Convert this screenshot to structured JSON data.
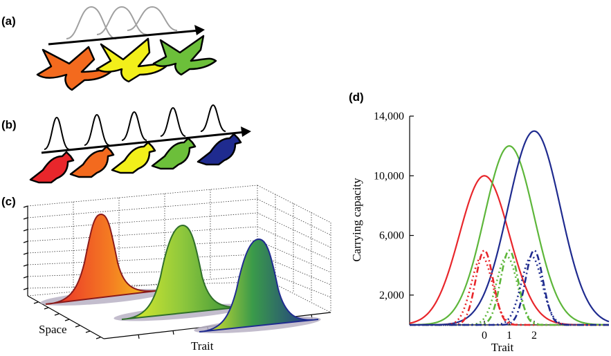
{
  "panels": {
    "a": {
      "label": "(a)"
    },
    "b": {
      "label": "(b)"
    },
    "c": {
      "label": "(c)",
      "space_label": "Space",
      "trait_label": "Trait"
    },
    "d": {
      "label": "(d)"
    }
  },
  "colors": {
    "red": "#e8262b",
    "green": "#5db63a",
    "blue": "#1f2b8f",
    "orange": "#f36a1e",
    "yellow": "#f2ef1a",
    "gray": "#9a9a9a"
  },
  "chart_data": {
    "type": "line",
    "xlabel": "Trait",
    "ylabel": "Carrying capacity",
    "x_ticks": [
      "0",
      "1",
      "2"
    ],
    "y_ticks": [
      "2,000",
      "6,000",
      "10,000",
      "14,000"
    ],
    "ylim": [
      0,
      14000
    ],
    "xlim": [
      -3,
      5
    ],
    "series": [
      {
        "style": "solid",
        "color": "#e8262b",
        "peak_x": 0,
        "peak_y": 10000,
        "sigma": 1.0
      },
      {
        "style": "solid",
        "color": "#5db63a",
        "peak_x": 1,
        "peak_y": 12000,
        "sigma": 1.0
      },
      {
        "style": "solid",
        "color": "#1f2b8f",
        "peak_x": 2,
        "peak_y": 13000,
        "sigma": 1.05
      },
      {
        "style": "dashdot",
        "color": "#e8262b",
        "peak_x": 0,
        "peak_y": 5000,
        "sigma": 0.35
      },
      {
        "style": "dotted",
        "color": "#e8262b",
        "peak_x": -0.1,
        "peak_y": 4600,
        "sigma": 0.42
      },
      {
        "style": "dashdot",
        "color": "#5db63a",
        "peak_x": 1,
        "peak_y": 5000,
        "sigma": 0.35
      },
      {
        "style": "dotted",
        "color": "#5db63a",
        "peak_x": 0.9,
        "peak_y": 4600,
        "sigma": 0.42
      },
      {
        "style": "dashdot",
        "color": "#1f2b8f",
        "peak_x": 2,
        "peak_y": 5000,
        "sigma": 0.35
      },
      {
        "style": "dotted",
        "color": "#1f2b8f",
        "peak_x": 1.9,
        "peak_y": 4600,
        "sigma": 0.42
      }
    ]
  }
}
